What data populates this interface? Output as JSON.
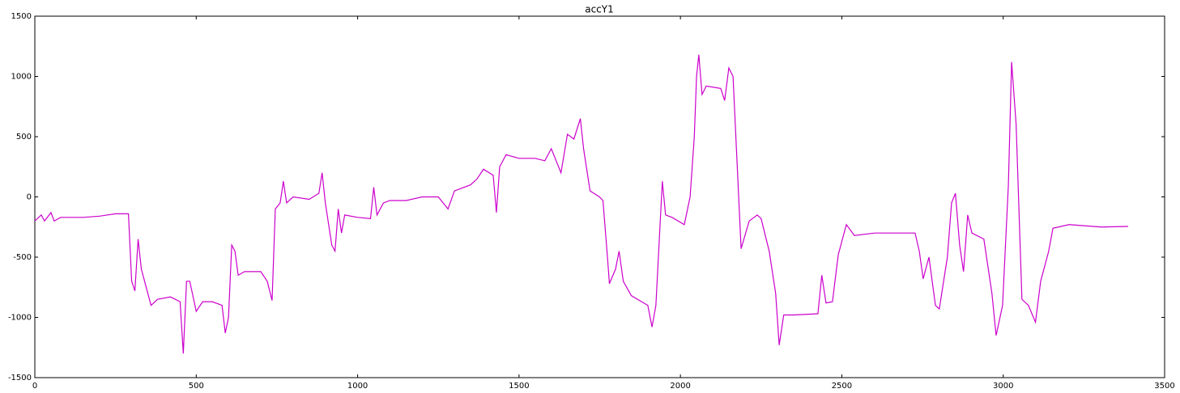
{
  "chart_data": {
    "type": "line",
    "title": "accY1",
    "color": "#cc00cc",
    "xlim": [
      0,
      3500
    ],
    "xticks": [
      0,
      500,
      1000,
      1500,
      2000,
      2500,
      3000,
      3500
    ],
    "ylim": [
      -1500,
      1500
    ],
    "yticks": [
      -1500,
      -1000,
      -500,
      0,
      500,
      1000,
      1500
    ],
    "x": [
      0,
      20,
      30,
      50,
      60,
      80,
      150,
      200,
      250,
      290,
      300,
      310,
      320,
      330,
      350,
      360,
      380,
      420,
      450,
      460,
      470,
      480,
      500,
      520,
      550,
      580,
      590,
      600,
      610,
      620,
      630,
      650,
      700,
      720,
      735,
      745,
      760,
      770,
      780,
      800,
      850,
      880,
      890,
      900,
      920,
      930,
      940,
      950,
      960,
      1000,
      1040,
      1050,
      1060,
      1080,
      1100,
      1150,
      1200,
      1250,
      1280,
      1300,
      1350,
      1370,
      1390,
      1420,
      1430,
      1440,
      1460,
      1500,
      1550,
      1580,
      1600,
      1630,
      1650,
      1670,
      1690,
      1700,
      1720,
      1749,
      1760,
      1774,
      1780,
      1799,
      1810,
      1823,
      1848,
      1899,
      1912,
      1924,
      1944,
      1954,
      1974,
      2012,
      2030,
      2043,
      2050,
      2057,
      2067,
      2080,
      2125,
      2137,
      2150,
      2163,
      2188,
      2213,
      2238,
      2250,
      2275,
      2295,
      2306,
      2320,
      2351,
      2426,
      2438,
      2451,
      2471,
      2489,
      2514,
      2539,
      2602,
      2727,
      2740,
      2752,
      2770,
      2790,
      2802,
      2827,
      2840,
      2852,
      2865,
      2877,
      2890,
      2903,
      2940,
      2965,
      2978,
      2998,
      3016,
      3026,
      3040,
      3058,
      3078,
      3100,
      3116,
      3141,
      3154,
      3204,
      3304,
      3387
    ],
    "values": [
      -200,
      -150,
      -200,
      -130,
      -200,
      -170,
      -170,
      -160,
      -140,
      -140,
      -700,
      -780,
      -350,
      -600,
      -800,
      -900,
      -850,
      -830,
      -870,
      -1300,
      -700,
      -700,
      -950,
      -870,
      -870,
      -900,
      -1130,
      -1000,
      -400,
      -450,
      -650,
      -620,
      -620,
      -700,
      -860,
      -100,
      -50,
      130,
      -50,
      0,
      -20,
      30,
      200,
      -50,
      -400,
      -450,
      -100,
      -300,
      -150,
      -170,
      -180,
      80,
      -150,
      -50,
      -30,
      -30,
      0,
      0,
      -100,
      50,
      100,
      150,
      230,
      180,
      -130,
      250,
      350,
      320,
      320,
      300,
      400,
      200,
      520,
      480,
      650,
      400,
      50,
      0,
      -30,
      -500,
      -720,
      -600,
      -450,
      -700,
      -820,
      -900,
      -1080,
      -900,
      130,
      -150,
      -170,
      -230,
      0,
      500,
      1000,
      1180,
      850,
      920,
      900,
      800,
      1070,
      1000,
      -430,
      -200,
      -150,
      -180,
      -450,
      -800,
      -1230,
      -980,
      -980,
      -970,
      -650,
      -880,
      -870,
      -480,
      -230,
      -320,
      -300,
      -300,
      -450,
      -680,
      -500,
      -900,
      -930,
      -500,
      -50,
      30,
      -400,
      -620,
      -150,
      -300,
      -350,
      -800,
      -1150,
      -900,
      100,
      1120,
      600,
      -850,
      -900,
      -1040,
      -700,
      -450,
      -260,
      -230,
      -250,
      -245
    ]
  }
}
